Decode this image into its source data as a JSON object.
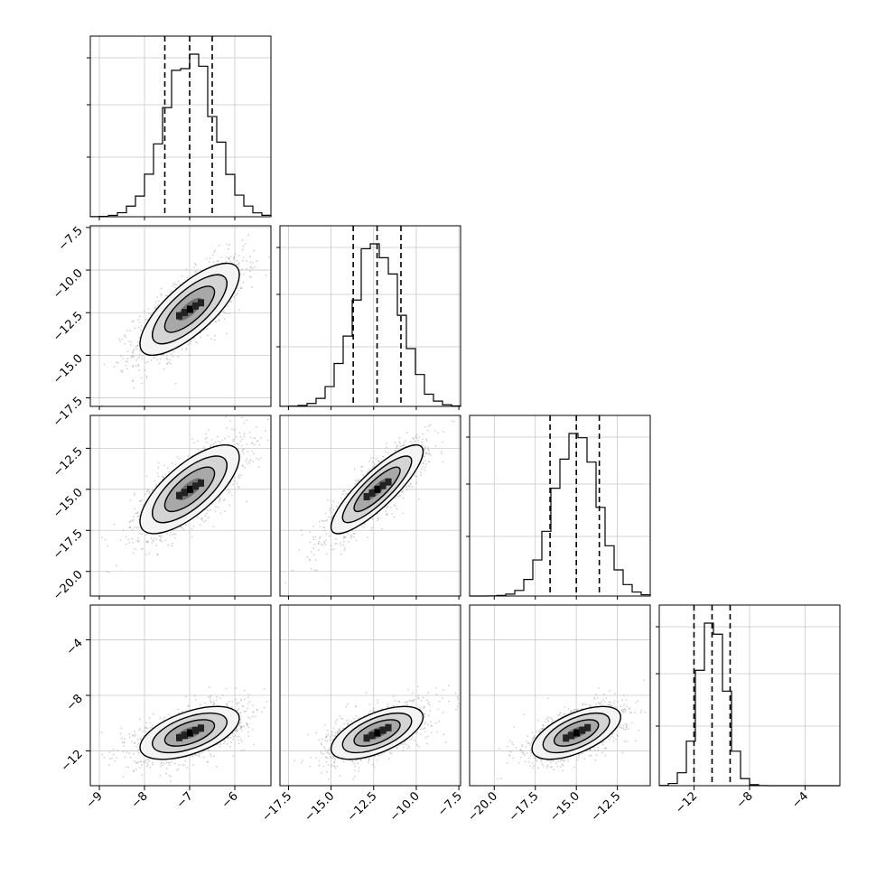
{
  "chart_data": {
    "type": "corner",
    "parameters": [
      {
        "center": -7.0,
        "sigma": 0.55,
        "range": [
          -9.2,
          -5.2
        ],
        "quantiles": [
          -7.55,
          -7.0,
          -6.5
        ],
        "ticks": [
          -9,
          -8,
          -7,
          -6
        ],
        "tick_labels": [
          "−9",
          "−8",
          "−7",
          "−6"
        ]
      },
      {
        "center": -12.3,
        "sigma": 1.35,
        "range": [
          -18.0,
          -7.4
        ],
        "quantiles": [
          -13.7,
          -12.3,
          -10.9
        ],
        "ticks": [
          -17.5,
          -15.0,
          -12.5,
          -10.0,
          -7.5
        ],
        "tick_labels": [
          "−17.5",
          "−15.0",
          "−12.5",
          "−10.0",
          "−7.5"
        ]
      },
      {
        "center": -15.0,
        "sigma": 1.35,
        "range": [
          -21.5,
          -10.5
        ],
        "quantiles": [
          -16.6,
          -15.0,
          -13.6
        ],
        "ticks": [
          -20.0,
          -17.5,
          -15.0,
          -12.5
        ],
        "tick_labels": [
          "−20.0",
          "−17.5",
          "−15.0",
          "−12.5"
        ]
      },
      {
        "center": -10.7,
        "sigma": 0.95,
        "range": [
          -14.5,
          -1.5
        ],
        "quantiles": [
          -12.0,
          -10.7,
          -9.4
        ],
        "ticks": [
          -12,
          -8,
          -4
        ],
        "tick_labels": [
          "−12",
          "−8",
          "−4"
        ]
      }
    ],
    "y_axis": {
      "row1": {
        "ticks": [
          -7.5,
          -10.0,
          -12.5,
          -15.0,
          -17.5
        ],
        "tick_labels": [
          "−7.5",
          "−10.0",
          "−12.5",
          "−15.0",
          "−17.5"
        ]
      },
      "row2": {
        "ticks": [
          -12.5,
          -15.0,
          -17.5,
          -20.0
        ],
        "tick_labels": [
          "−12.5",
          "−15.0",
          "−17.5",
          "−20.0"
        ]
      },
      "row3": {
        "ticks": [
          -4,
          -8,
          -12
        ],
        "tick_labels": [
          "−4",
          "−8",
          "−12"
        ]
      }
    },
    "correlations": {
      "1-0": 0.75,
      "2-0": 0.72,
      "2-1": 0.85,
      "3-0": 0.55,
      "3-1": 0.6,
      "3-2": 0.6
    },
    "contour_levels_sigma": [
      0.5,
      1.0,
      1.5,
      2.0
    ],
    "grid": true
  }
}
